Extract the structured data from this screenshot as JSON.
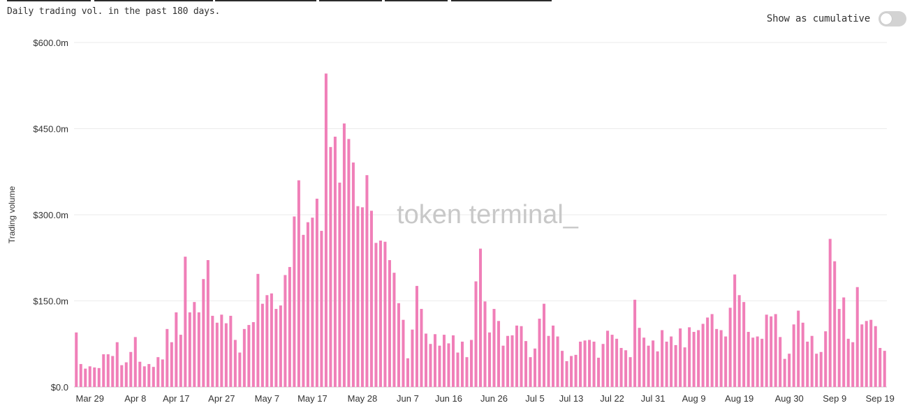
{
  "caption": "Daily trading vol. in the past 180 days.",
  "toggle": {
    "label": "Show as cumulative",
    "on": false
  },
  "watermark": "token terminal_",
  "colors": {
    "bar": "#f07fb8",
    "grid": "#ebebeb",
    "text": "#333333"
  },
  "chart_data": {
    "type": "bar",
    "ylabel": "Trading volume",
    "ylim": [
      0,
      600
    ],
    "yticks": [
      {
        "value": 0,
        "label": "$0.0"
      },
      {
        "value": 150,
        "label": "$150.0m"
      },
      {
        "value": 300,
        "label": "$300.0m"
      },
      {
        "value": 450,
        "label": "$450.0m"
      },
      {
        "value": 600,
        "label": "$600.0m"
      }
    ],
    "xticks": [
      {
        "index": 3,
        "label": "Mar 29"
      },
      {
        "index": 13,
        "label": "Apr 8"
      },
      {
        "index": 22,
        "label": "Apr 17"
      },
      {
        "index": 32,
        "label": "Apr 27"
      },
      {
        "index": 42,
        "label": "May 7"
      },
      {
        "index": 52,
        "label": "May 17"
      },
      {
        "index": 63,
        "label": "May 28"
      },
      {
        "index": 73,
        "label": "Jun 7"
      },
      {
        "index": 82,
        "label": "Jun 16"
      },
      {
        "index": 92,
        "label": "Jun 26"
      },
      {
        "index": 101,
        "label": "Jul 5"
      },
      {
        "index": 109,
        "label": "Jul 13"
      },
      {
        "index": 118,
        "label": "Jul 22"
      },
      {
        "index": 127,
        "label": "Jul 31"
      },
      {
        "index": 136,
        "label": "Aug 9"
      },
      {
        "index": 146,
        "label": "Aug 19"
      },
      {
        "index": 157,
        "label": "Aug 30"
      },
      {
        "index": 167,
        "label": "Sep 9"
      },
      {
        "index": 177,
        "label": "Sep 19"
      }
    ],
    "grid": true,
    "values": [
      95,
      40,
      32,
      36,
      34,
      33,
      57,
      57,
      54,
      78,
      38,
      43,
      61,
      87,
      44,
      36,
      40,
      35,
      52,
      48,
      101,
      78,
      130,
      91,
      227,
      130,
      148,
      130,
      188,
      221,
      124,
      112,
      126,
      111,
      124,
      82,
      60,
      101,
      108,
      113,
      197,
      145,
      160,
      163,
      136,
      142,
      195,
      209,
      297,
      360,
      265,
      287,
      295,
      328,
      272,
      546,
      418,
      436,
      356,
      459,
      432,
      391,
      315,
      313,
      369,
      307,
      251,
      255,
      253,
      221,
      199,
      146,
      117,
      50,
      100,
      176,
      136,
      93,
      75,
      92,
      72,
      91,
      76,
      90,
      60,
      79,
      52,
      82,
      184,
      241,
      149,
      95,
      136,
      115,
      72,
      89,
      90,
      107,
      106,
      80,
      52,
      67,
      119,
      145,
      89,
      107,
      88,
      63,
      45,
      54,
      56,
      79,
      81,
      82,
      79,
      51,
      75,
      98,
      91,
      84,
      68,
      64,
      52,
      152,
      103,
      86,
      72,
      81,
      62,
      99,
      79,
      88,
      73,
      102,
      69,
      104,
      96,
      99,
      110,
      121,
      127,
      101,
      99,
      88,
      138,
      196,
      160,
      148,
      96,
      86,
      88,
      84,
      126,
      123,
      127,
      87,
      49,
      58,
      109,
      133,
      112,
      79,
      89,
      58,
      61,
      97,
      258,
      219,
      136,
      156,
      84,
      78,
      174,
      109,
      115,
      117,
      106,
      68,
      63
    ]
  }
}
